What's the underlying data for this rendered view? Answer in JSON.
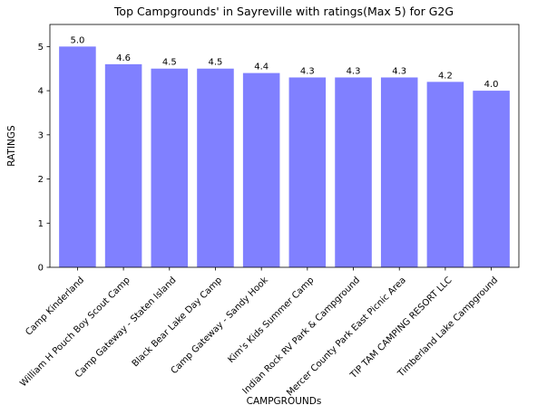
{
  "chart_data": {
    "type": "bar",
    "title": "Top Campgrounds' in Sayreville with ratings(Max 5) for G2G",
    "xlabel": "CAMPGROUNDs",
    "ylabel": "RATINGS",
    "ylim": [
      0,
      5.5
    ],
    "yticks": [
      "0",
      "1",
      "2",
      "3",
      "4",
      "5"
    ],
    "categories": [
      "Camp Kinderland",
      "William H Pouch Boy Scout Camp",
      "Camp Gateway - Staten Island",
      "Black Bear Lake Day Camp",
      "Camp Gateway - Sandy Hook",
      "Kim's Kids Summer Camp",
      "Indian Rock RV Park & Campground",
      "Mercer County Park East Picnic Area",
      "TIP TAM CAMPING RESORT LLC",
      "Timberland Lake Campground"
    ],
    "values": [
      5.0,
      4.6,
      4.5,
      4.5,
      4.4,
      4.3,
      4.3,
      4.3,
      4.2,
      4.0
    ],
    "data_labels": [
      "5.0",
      "4.6",
      "4.5",
      "4.5",
      "4.4",
      "4.3",
      "4.3",
      "4.3",
      "4.2",
      "4.0"
    ],
    "bar_color": "#8080ff",
    "grid": false,
    "legend": "none"
  }
}
